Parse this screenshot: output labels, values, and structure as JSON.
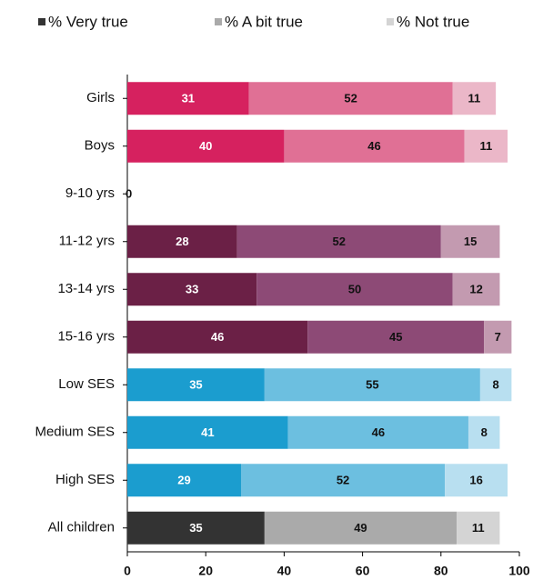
{
  "chart_data": {
    "type": "stacked_bar_horizontal",
    "categories": [
      "Girls",
      "Boys",
      "9-10 yrs",
      "11-12 yrs",
      "13-14 yrs",
      "15-16 yrs",
      "Low SES",
      "Medium SES",
      "High SES",
      "All children"
    ],
    "series": [
      {
        "name": "% Very true",
        "color": "#333333",
        "values": [
          31,
          40,
          0,
          28,
          33,
          46,
          35,
          41,
          29,
          35
        ],
        "colors": [
          "#d6215f",
          "#d6215f",
          "#6b2046",
          "#6b2046",
          "#6b2046",
          "#6b2046",
          "#1b9dcf",
          "#1b9dcf",
          "#1b9dcf",
          "#333333"
        ]
      },
      {
        "name": "% A bit true",
        "color": "#aaaaaa",
        "values": [
          52,
          46,
          null,
          52,
          50,
          45,
          55,
          46,
          52,
          49
        ],
        "colors": [
          "#e07095",
          "#e07095",
          "#8d4a76",
          "#8d4a76",
          "#8d4a76",
          "#8d4a76",
          "#6cbfe0",
          "#6cbfe0",
          "#6cbfe0",
          "#aaaaaa"
        ]
      },
      {
        "name": "% Not true",
        "color": "#d4d4d4",
        "values": [
          11,
          11,
          null,
          15,
          12,
          7,
          8,
          8,
          16,
          11
        ],
        "colors": [
          "#ebb7c8",
          "#ebb7c8",
          "#c39ab0",
          "#c39ab0",
          "#c39ab0",
          "#c39ab0",
          "#b8dff0",
          "#b8dff0",
          "#b8dff0",
          "#d4d4d4"
        ]
      }
    ],
    "xlim": [
      0,
      100
    ],
    "xticks": [
      0,
      20,
      40,
      60,
      80,
      100
    ],
    "legend": "top"
  }
}
